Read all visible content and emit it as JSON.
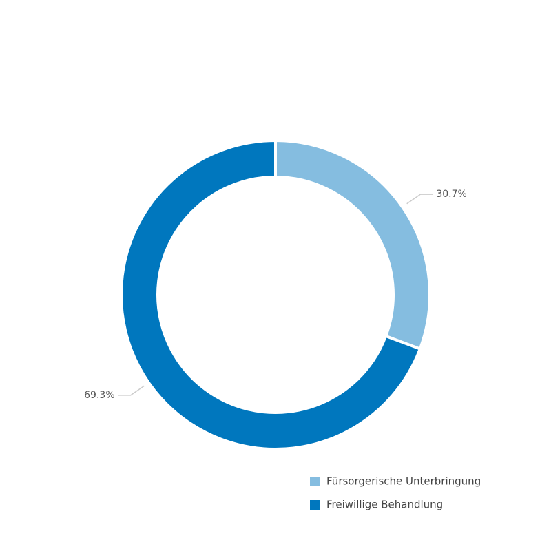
{
  "chart_data": {
    "type": "donut",
    "categories": [
      "Fürsorgerische Unterbringung",
      "Freiwillige Behandlung"
    ],
    "values": [
      30.7,
      69.3
    ],
    "value_labels": [
      "30.7%",
      "69.3%"
    ],
    "colors": [
      "#85bde0",
      "#0077be"
    ],
    "legend": "bottom-right"
  }
}
